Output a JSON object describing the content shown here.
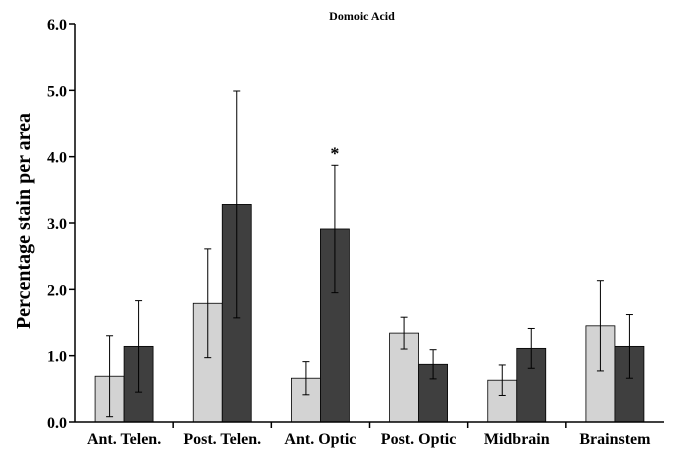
{
  "chart_data": {
    "type": "bar",
    "title": "Domoic Acid",
    "xlabel": "",
    "ylabel": "Percentage stain per area",
    "categories": [
      "Ant. Telen.",
      "Post. Telen.",
      "Ant. Optic",
      "Post. Optic",
      "Midbrain",
      "Brainstem"
    ],
    "ylim": [
      0,
      6
    ],
    "yticks": [
      "0.0",
      "1.0",
      "2.0",
      "3.0",
      "4.0",
      "5.0",
      "6.0"
    ],
    "grid": false,
    "legend": "none",
    "series": [
      {
        "color": "#d3d3d3",
        "values": [
          0.69,
          1.79,
          0.66,
          1.34,
          0.63,
          1.45
        ],
        "error": [
          0.61,
          0.82,
          0.25,
          0.24,
          0.23,
          0.68
        ]
      },
      {
        "color": "#3f3f3f",
        "values": [
          1.14,
          3.28,
          2.91,
          0.87,
          1.11,
          1.14
        ],
        "error": [
          0.69,
          1.71,
          0.96,
          0.22,
          0.3,
          0.48
        ]
      }
    ],
    "annotations": [
      {
        "text": "*",
        "category": "Ant. Optic",
        "series": 1
      }
    ]
  }
}
